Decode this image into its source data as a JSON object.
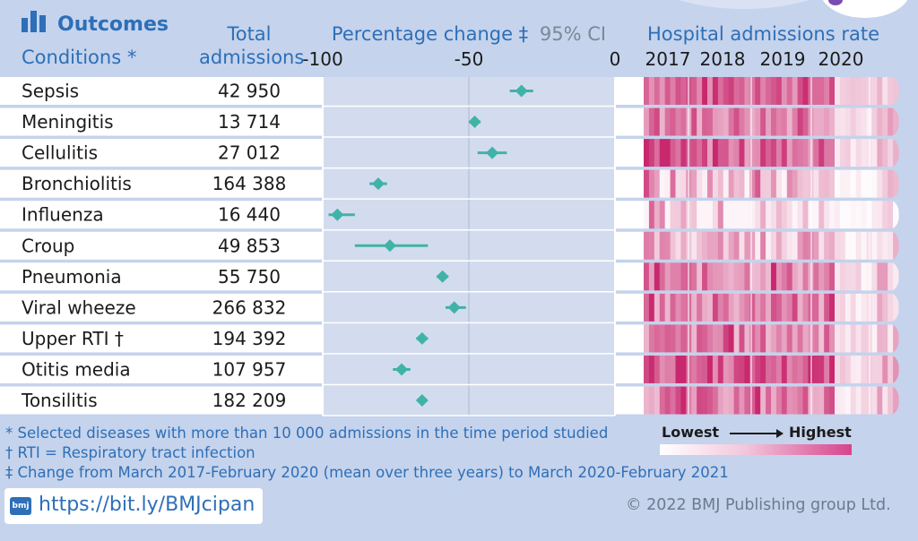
{
  "header": {
    "title": "Outcomes",
    "conditions_label": "Conditions *",
    "total_label_1": "Total",
    "total_label_2": "admissions",
    "pct_label": "Percentage change ‡",
    "ci_label": "95% CI",
    "rate_label": "Hospital admissions rate"
  },
  "chart_data": {
    "type": "table",
    "title": "Outcomes",
    "xlim": [
      -100,
      0
    ],
    "x_ticks": [
      -100,
      -50,
      0
    ],
    "years": [
      "2017",
      "2018",
      "2019",
      "2020"
    ],
    "rows": [
      {
        "name": "Sepsis",
        "total": "42 950",
        "pct": -32,
        "ci": [
          -36,
          -28
        ]
      },
      {
        "name": "Meningitis",
        "total": "13 714",
        "pct": -48,
        "ci": [
          -50,
          -46
        ]
      },
      {
        "name": "Cellulitis",
        "total": "27 012",
        "pct": -42,
        "ci": [
          -47,
          -37
        ]
      },
      {
        "name": "Bronchiolitis",
        "total": "164 388",
        "pct": -81,
        "ci": [
          -84,
          -78
        ]
      },
      {
        "name": "Influenza",
        "total": "16 440",
        "pct": -95,
        "ci": [
          -98,
          -89
        ]
      },
      {
        "name": "Croup",
        "total": "49 853",
        "pct": -77,
        "ci": [
          -89,
          -64
        ]
      },
      {
        "name": "Pneumonia",
        "total": "55 750",
        "pct": -59,
        "ci": [
          -61,
          -57
        ]
      },
      {
        "name": "Viral wheeze",
        "total": "266 832",
        "pct": -55,
        "ci": [
          -58,
          -51
        ]
      },
      {
        "name": "Upper RTI †",
        "total": "194 392",
        "pct": -66,
        "ci": [
          -68,
          -64
        ]
      },
      {
        "name": "Otitis media",
        "total": "107 957",
        "pct": -73,
        "ci": [
          -76,
          -70
        ]
      },
      {
        "name": "Tonsilitis",
        "total": "182 209",
        "pct": -66,
        "ci": [
          -67,
          -65
        ]
      }
    ]
  },
  "legend": {
    "low": "Lowest",
    "high": "Highest"
  },
  "footnotes": [
    "* Selected diseases with more than 10 000 admissions in the time period studied",
    "† RTI = Respiratory tract infection",
    "‡ Change from March 2017-February 2020 (mean over three years) to March 2020-February 2021"
  ],
  "logo_text": "bmj",
  "url": "https://bit.ly/BMJcipan",
  "copyright": "© 2022 BMJ Publishing group Ltd.",
  "colors": {
    "background": "#c5d3ec",
    "accent": "#2d6fb8",
    "marker": "#40b3a8",
    "heat_high": "#c8286e"
  }
}
